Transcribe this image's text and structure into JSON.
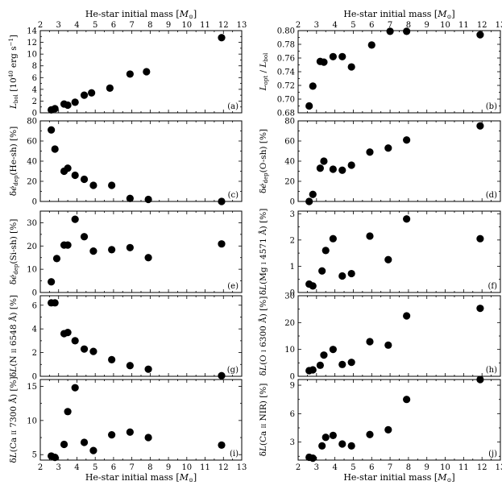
{
  "figure": {
    "x_axis_label_html": "He-star initial mass [<tspan font-style='italic'>M</tspan><tspan font-size='7' dy='2'>⊙</tspan><tspan dy='-2'>]</tspan>"
  },
  "chart_data": [
    {
      "panel": "a",
      "type": "scatter",
      "ylabel": "L_bol [10^40 erg s^-1]",
      "xlim": [
        2,
        13
      ],
      "ylim": [
        0,
        14
      ],
      "yticks": [
        0,
        2,
        4,
        6,
        8,
        10,
        12,
        14
      ],
      "x": [
        2.6,
        2.8,
        3.3,
        3.5,
        3.9,
        4.4,
        4.8,
        5.8,
        6.9,
        7.8,
        11.9
      ],
      "y": [
        0.5,
        0.7,
        1.5,
        1.3,
        1.8,
        3.0,
        3.4,
        4.2,
        6.6,
        7.0,
        12.8
      ]
    },
    {
      "panel": "b",
      "type": "scatter",
      "ylabel": "L_opt / L_bol",
      "xlim": [
        2,
        13
      ],
      "ylim": [
        0.68,
        0.8
      ],
      "yticks": [
        0.68,
        0.7,
        0.72,
        0.74,
        0.76,
        0.78,
        0.8
      ],
      "x": [
        2.6,
        2.8,
        3.2,
        3.4,
        3.9,
        4.4,
        4.9,
        6.0,
        7.0,
        7.9,
        11.9
      ],
      "y": [
        0.69,
        0.719,
        0.755,
        0.754,
        0.762,
        0.762,
        0.747,
        0.779,
        0.799,
        0.799,
        0.794
      ]
    },
    {
      "panel": "c",
      "type": "scatter",
      "ylabel": "δė_dep(He-sh) [%]",
      "xlim": [
        2,
        13
      ],
      "ylim": [
        0,
        80
      ],
      "yticks": [
        0,
        20,
        40,
        60,
        80
      ],
      "x": [
        2.6,
        2.8,
        3.3,
        3.5,
        3.9,
        4.4,
        4.9,
        5.9,
        6.9,
        7.9,
        11.9
      ],
      "y": [
        71,
        52,
        30,
        33,
        26,
        22,
        16,
        16,
        3,
        2,
        0
      ]
    },
    {
      "panel": "d",
      "type": "scatter",
      "ylabel": "δė_dep(O-sh) [%]",
      "xlim": [
        2,
        13
      ],
      "ylim": [
        0,
        80
      ],
      "yticks": [
        0,
        20,
        40,
        60,
        80
      ],
      "x": [
        2.6,
        2.8,
        3.2,
        3.4,
        3.9,
        4.4,
        4.9,
        5.9,
        6.9,
        7.9,
        11.9
      ],
      "y": [
        0,
        7,
        33,
        40,
        32,
        31,
        36,
        49,
        53,
        61,
        75
      ]
    },
    {
      "panel": "e",
      "type": "scatter",
      "ylabel": "δė_dep(Si-sh) [%]",
      "xlim": [
        2,
        13
      ],
      "ylim": [
        0,
        35
      ],
      "yticks": [
        0,
        10,
        20,
        30
      ],
      "x": [
        2.6,
        2.9,
        3.3,
        3.5,
        3.9,
        4.4,
        4.9,
        5.9,
        6.9,
        7.9,
        11.9
      ],
      "y": [
        4.6,
        14.6,
        20.4,
        20.4,
        31.5,
        24.0,
        17.8,
        18.4,
        19.3,
        15.0,
        20.9
      ]
    },
    {
      "panel": "f",
      "type": "scatter",
      "ylabel": "δL(Mg I 4571 Å) [%]",
      "xlim": [
        2,
        13
      ],
      "ylim": [
        0,
        3.1
      ],
      "yticks": [
        0,
        1,
        2,
        3
      ],
      "x": [
        2.6,
        2.8,
        3.3,
        3.5,
        3.9,
        4.4,
        4.9,
        5.9,
        6.9,
        7.9,
        11.9
      ],
      "y": [
        0.32,
        0.25,
        0.82,
        1.6,
        2.05,
        0.63,
        0.72,
        2.15,
        1.25,
        2.8,
        2.05
      ]
    },
    {
      "panel": "g",
      "type": "scatter",
      "ylabel": "δL(N II 6548 Å) [%]",
      "xlim": [
        2,
        13
      ],
      "ylim": [
        0,
        6.8
      ],
      "yticks": [
        0,
        2,
        4,
        6
      ],
      "x": [
        2.6,
        2.8,
        3.3,
        3.5,
        3.9,
        4.4,
        4.9,
        5.9,
        6.9,
        7.9,
        11.9
      ],
      "y": [
        6.2,
        6.2,
        3.6,
        3.7,
        3.0,
        2.3,
        2.1,
        1.4,
        0.9,
        0.6,
        0.05
      ]
    },
    {
      "panel": "h",
      "type": "scatter",
      "ylabel": "δL(O I 6300 Å) [%]",
      "xlim": [
        2,
        13
      ],
      "ylim": [
        0,
        30
      ],
      "yticks": [
        0,
        10,
        20,
        30
      ],
      "x": [
        2.6,
        2.8,
        3.2,
        3.4,
        3.9,
        4.4,
        4.9,
        5.9,
        6.9,
        7.9,
        11.9
      ],
      "y": [
        2.1,
        2.4,
        4.1,
        7.9,
        10.0,
        4.4,
        5.2,
        12.9,
        11.6,
        22.5,
        25.3
      ]
    },
    {
      "panel": "i",
      "type": "scatter",
      "ylabel": "δL(Ca II 7300 Å) [%]",
      "xlim": [
        2,
        13
      ],
      "ylim": [
        4.2,
        16
      ],
      "yticks": [
        5,
        10,
        15
      ],
      "x": [
        2.6,
        2.8,
        3.3,
        3.5,
        3.9,
        4.4,
        4.9,
        5.9,
        6.9,
        7.9,
        11.9
      ],
      "y": [
        4.8,
        4.6,
        6.5,
        11.3,
        14.8,
        6.8,
        5.6,
        7.9,
        8.3,
        7.5,
        6.4
      ]
    },
    {
      "panel": "j",
      "type": "scatter",
      "ylabel": "δL(Ca II NIR) [%]",
      "xlim": [
        2,
        13
      ],
      "ylim": [
        1.1,
        9.6
      ],
      "yticks": [
        3,
        6,
        9
      ],
      "x": [
        2.6,
        2.8,
        3.3,
        3.5,
        3.9,
        4.4,
        4.9,
        5.9,
        6.9,
        7.9,
        11.9
      ],
      "y": [
        1.4,
        1.3,
        2.6,
        3.5,
        3.7,
        2.8,
        2.6,
        3.8,
        4.3,
        7.5,
        9.6
      ]
    }
  ]
}
